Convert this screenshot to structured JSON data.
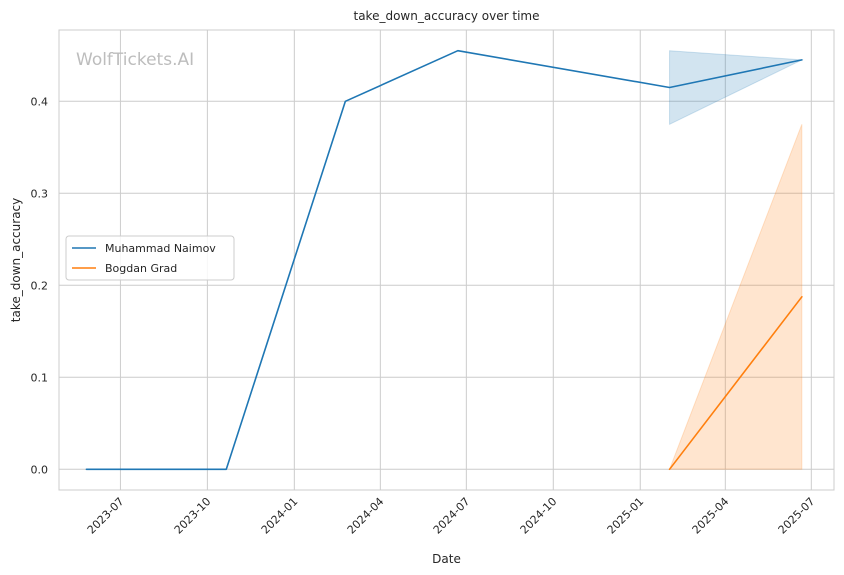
{
  "chart_data": {
    "type": "line",
    "title": "take_down_accuracy over time",
    "xlabel": "Date",
    "ylabel": "take_down_accuracy",
    "watermark": "WolfTickets.AI",
    "x_ticks": [
      "2023-07",
      "2023-10",
      "2024-01",
      "2024-04",
      "2024-07",
      "2024-10",
      "2025-01",
      "2025-04",
      "2025-07"
    ],
    "y_ticks": [
      "0.0",
      "0.1",
      "0.2",
      "0.3",
      "0.4"
    ],
    "xlim": [
      "2023-04-27",
      "2025-07-25"
    ],
    "ylim": [
      -0.0225,
      0.4775
    ],
    "grid": true,
    "legend_position": "center-left",
    "series": [
      {
        "name": "Muhammad Naimov",
        "color": "#1f77b4",
        "points": [
          {
            "date": "2023-05-26",
            "y": 0.0
          },
          {
            "date": "2023-10-21",
            "y": 0.0
          },
          {
            "date": "2024-02-24",
            "y": 0.4
          },
          {
            "date": "2024-06-22",
            "y": 0.455
          },
          {
            "date": "2025-02-01",
            "y": 0.415
          },
          {
            "date": "2025-06-21",
            "y": 0.445
          }
        ],
        "band": [
          {
            "date": "2025-02-01",
            "low": 0.375,
            "high": 0.455
          },
          {
            "date": "2025-06-21",
            "low": 0.445,
            "high": 0.445
          }
        ]
      },
      {
        "name": "Bogdan Grad",
        "color": "#ff7f0e",
        "points": [
          {
            "date": "2025-02-01",
            "y": 0.0
          },
          {
            "date": "2025-06-21",
            "y": 0.1875
          }
        ],
        "band": [
          {
            "date": "2025-02-01",
            "low": 0.0,
            "high": 0.0
          },
          {
            "date": "2025-06-21",
            "low": 0.0,
            "high": 0.375
          }
        ]
      }
    ]
  }
}
